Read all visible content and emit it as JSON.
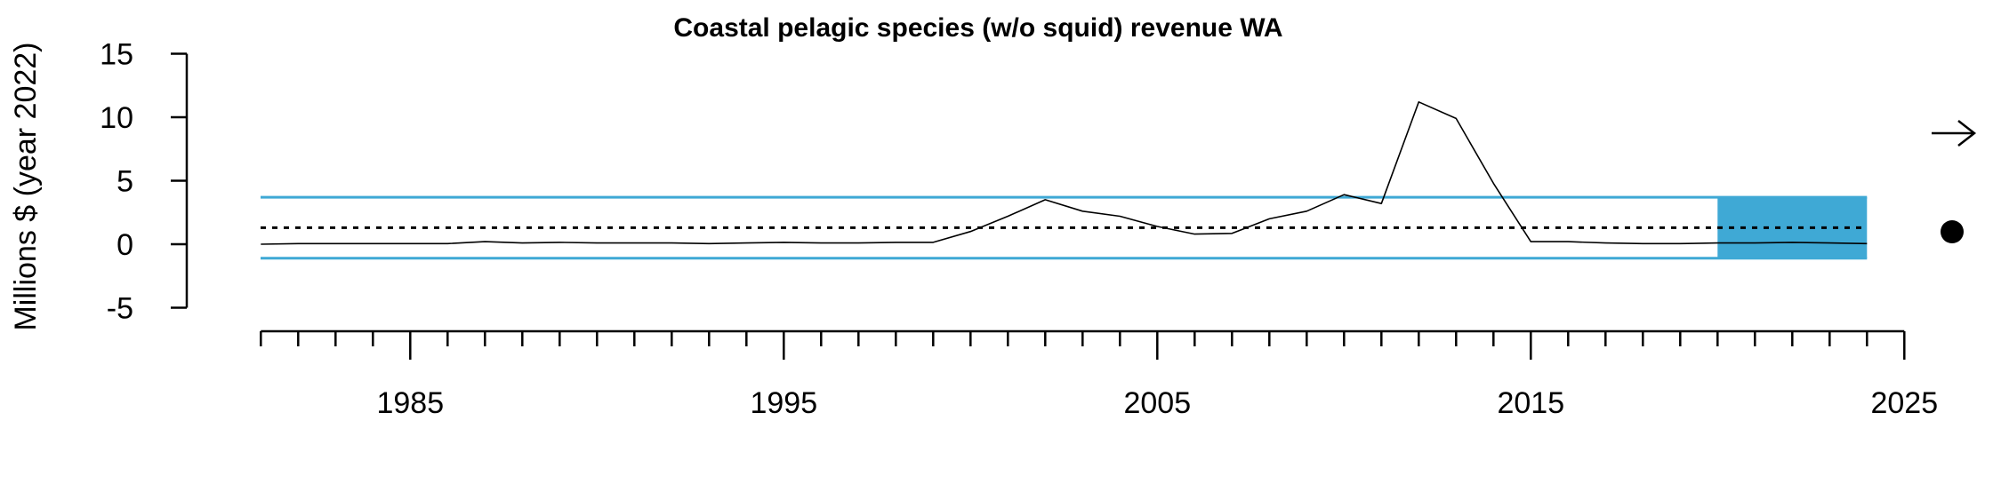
{
  "chart_data": {
    "type": "line",
    "title": "Coastal pelagic species (w/o squid) revenue WA",
    "xlabel": "",
    "ylabel": "Millions $ (year 2022)",
    "xlim": [
      1981,
      2025
    ],
    "ylim": [
      -5,
      15
    ],
    "x_ticks": [
      "1985",
      "1995",
      "2005",
      "2015",
      "2025"
    ],
    "y_ticks": [
      "15",
      "10",
      "5",
      "0",
      "-5"
    ],
    "series": [
      {
        "x": [
          1981,
          1982,
          1983,
          1984,
          1985,
          1986,
          1987,
          1988,
          1989,
          1990,
          1991,
          1992,
          1993,
          1994,
          1995,
          1996,
          1997,
          1998,
          1999,
          2000,
          2001,
          2002,
          2003,
          2004,
          2005,
          2006,
          2007,
          2008,
          2009,
          2010,
          2011,
          2012,
          2013,
          2014,
          2015,
          2016,
          2017,
          2018,
          2019,
          2020,
          2021,
          2022,
          2023,
          2024
        ],
        "values": [
          0.0,
          0.05,
          0.05,
          0.05,
          0.05,
          0.05,
          0.2,
          0.1,
          0.15,
          0.1,
          0.1,
          0.1,
          0.05,
          0.1,
          0.15,
          0.1,
          0.1,
          0.15,
          0.15,
          1.0,
          2.2,
          3.5,
          2.6,
          2.2,
          1.4,
          0.8,
          0.85,
          2.0,
          2.6,
          3.9,
          3.2,
          11.2,
          9.9,
          4.8,
          0.2,
          0.2,
          0.1,
          0.05,
          0.05,
          0.1,
          0.1,
          0.15,
          0.1,
          0.05
        ],
        "color": "#000000"
      }
    ],
    "mean": 1.3,
    "upper_sd": 3.7,
    "lower_sd": -1.1,
    "highlight_range": [
      2020,
      2024
    ],
    "colors": {
      "sd_lines": "#3FA9D5",
      "highlight": "#3FA9D5",
      "line": "#000000"
    },
    "trend_indicator": "right-arrow",
    "status_indicator": "filled-circle",
    "grid": false
  }
}
